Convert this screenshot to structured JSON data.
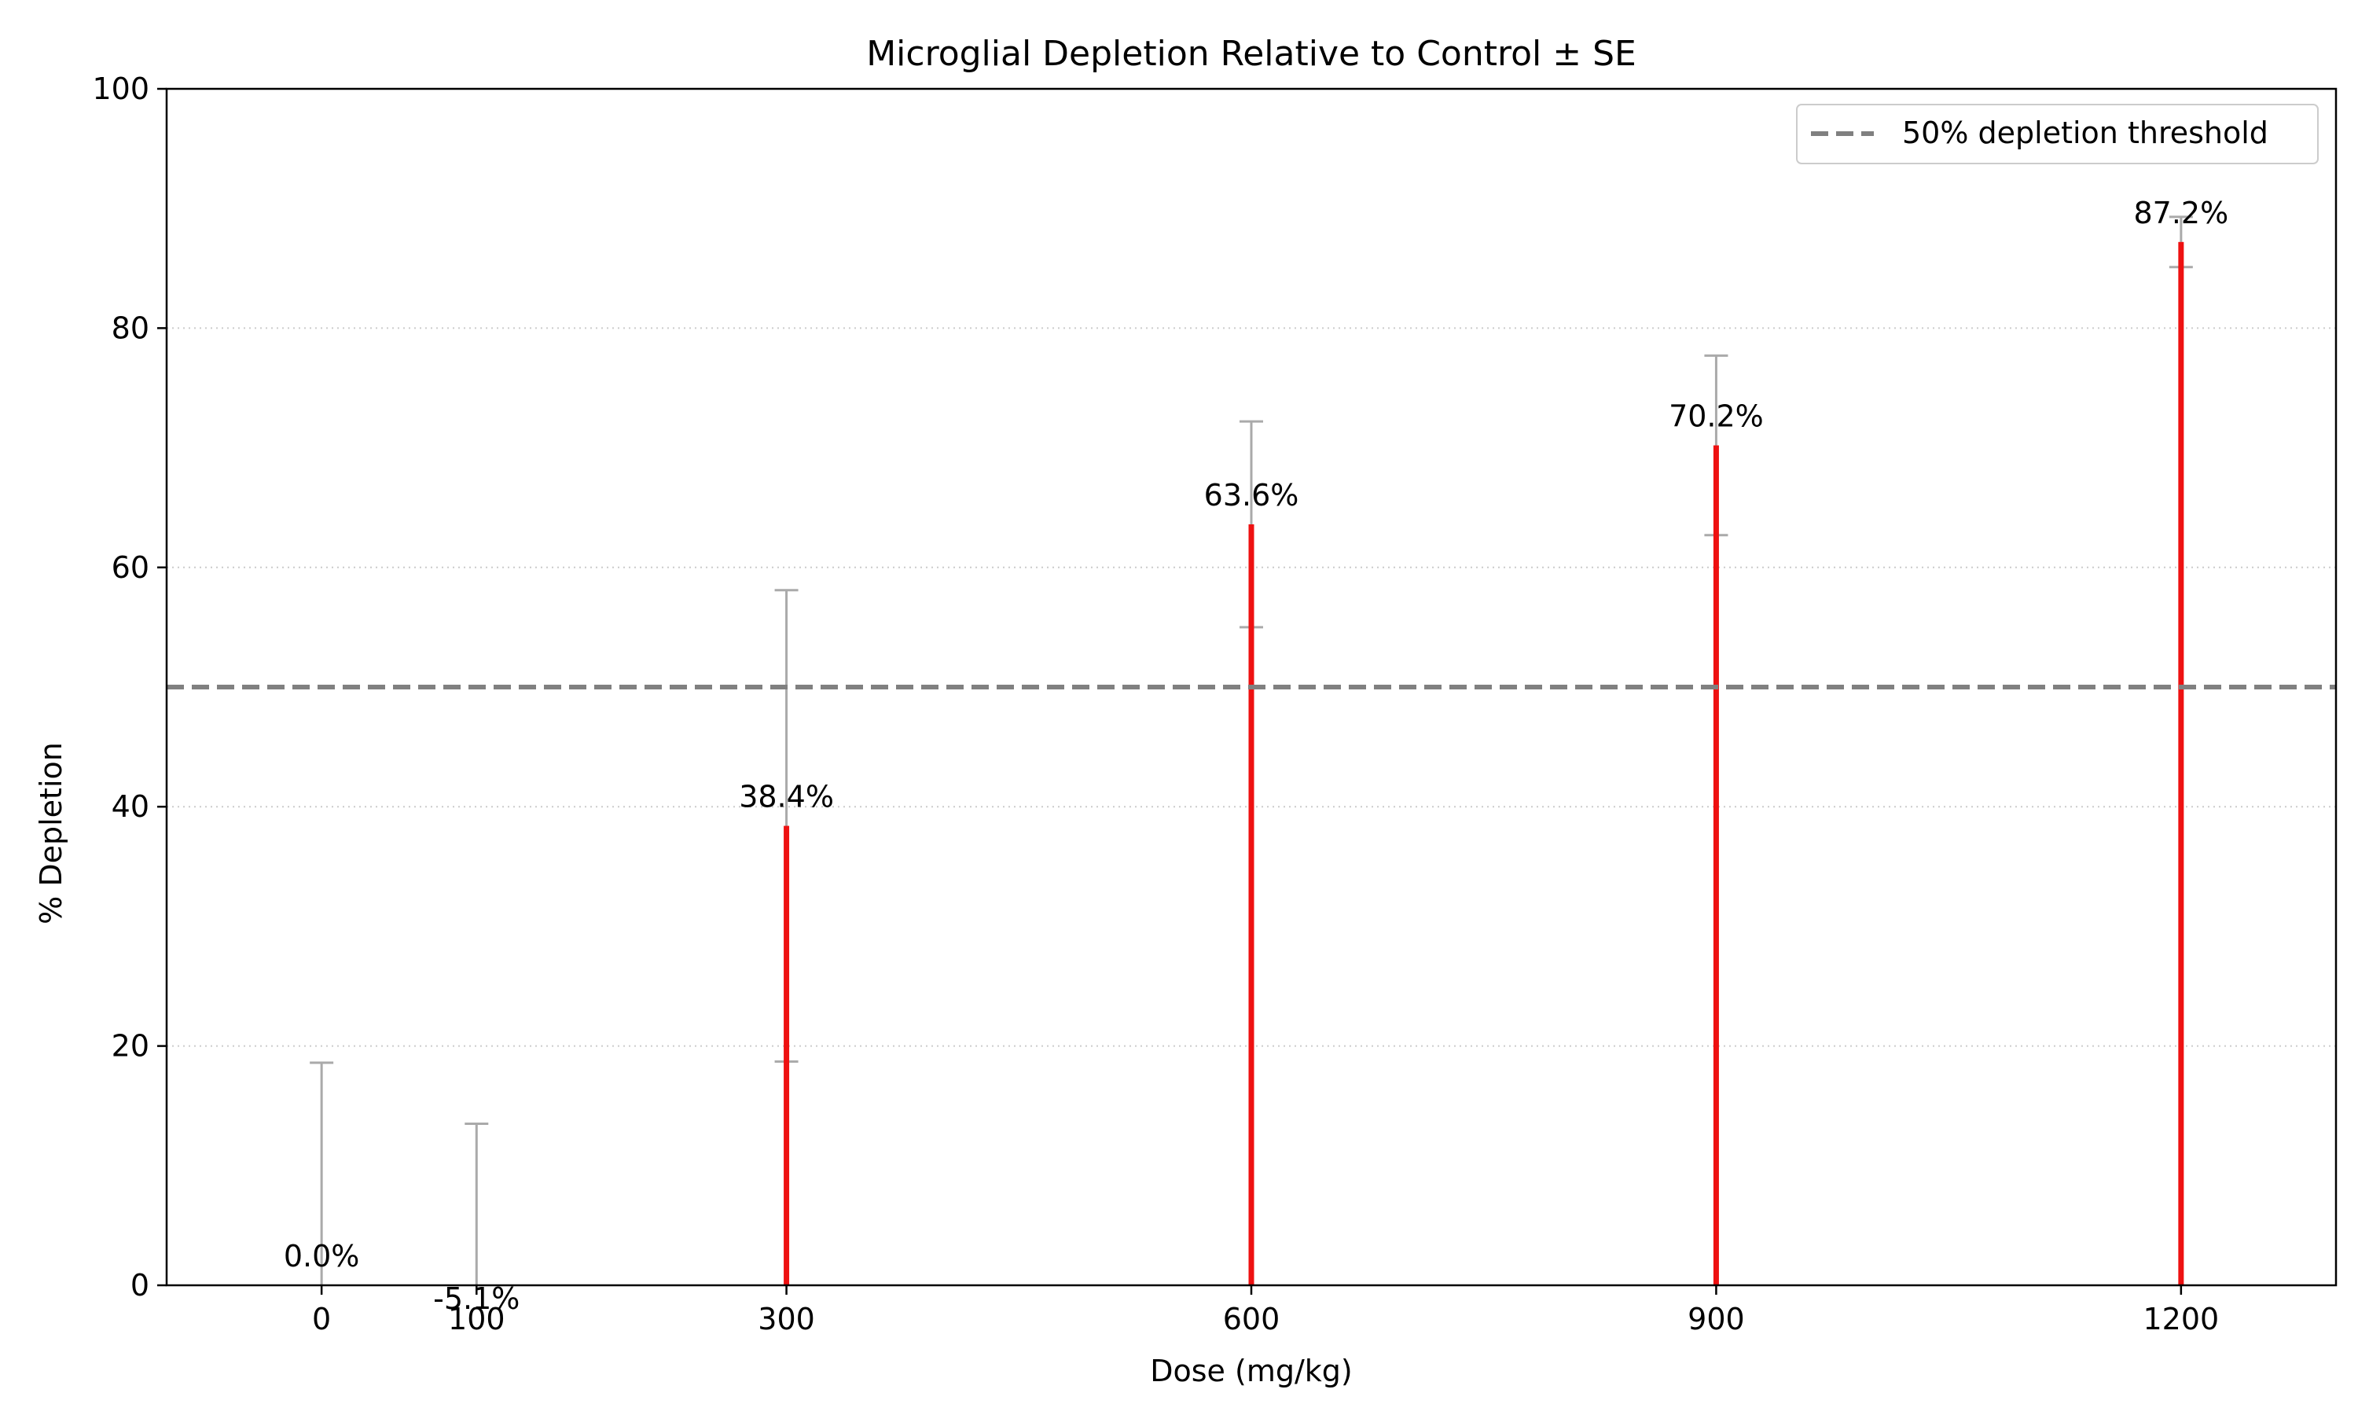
{
  "chart_data": {
    "type": "bar",
    "title": "Microglial Depletion Relative to Control ± SE",
    "xlabel": "Dose (mg/kg)",
    "ylabel": "% Depletion",
    "x": [
      0,
      100,
      300,
      600,
      900,
      1200
    ],
    "xlim": [
      -100,
      1300
    ],
    "ylim": [
      0,
      100
    ],
    "x_ticks": [
      0,
      100,
      300,
      600,
      900,
      1200
    ],
    "y_ticks": [
      0,
      20,
      40,
      60,
      80,
      100
    ],
    "grid": "y-dotted",
    "series": [
      {
        "values": [
          0.0,
          -5.1,
          38.4,
          63.6,
          70.2,
          87.2
        ],
        "se": [
          18.6,
          18.6,
          19.7,
          8.6,
          7.5,
          2.1
        ],
        "value_labels": [
          "0.0%",
          "-5.1%",
          "38.4%",
          "63.6%",
          "70.2%",
          "87.2%"
        ]
      }
    ],
    "reference_line": {
      "y": 50,
      "label": "50% depletion threshold",
      "style": "dashed"
    },
    "legend": {
      "placement": "top-right",
      "entries": [
        "50% depletion threshold"
      ]
    },
    "colors": {
      "bar": "#ee1111",
      "error_bar": "#aaaaaa",
      "reference_line": "#808080",
      "grid": "#cccccc",
      "axis": "#000000"
    }
  }
}
